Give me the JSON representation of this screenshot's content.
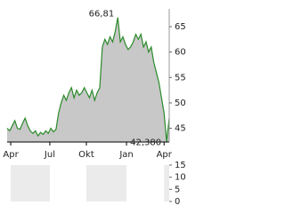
{
  "chart_data": [
    {
      "type": "area",
      "x": [
        0,
        1,
        2,
        3,
        4,
        5,
        6,
        7,
        8,
        9,
        10,
        11,
        12,
        13,
        14,
        15,
        16,
        17,
        18,
        19,
        20,
        21,
        22,
        23,
        24,
        25,
        26,
        27,
        28,
        29,
        30,
        31,
        32,
        33,
        34,
        35,
        36,
        37,
        38,
        39,
        40,
        41,
        42,
        43,
        44,
        45,
        46,
        47,
        48,
        49,
        50,
        51,
        52,
        53,
        54,
        55,
        56,
        57,
        58,
        59,
        60,
        61,
        62,
        63
      ],
      "series": [
        {
          "color": "#2a8a2a",
          "fill": "#c8c8c8",
          "values": [
            45,
            44.5,
            45.5,
            46.5,
            45,
            44.8,
            46,
            47,
            45.5,
            44.5,
            44,
            44.5,
            43.5,
            44.2,
            43.8,
            44.5,
            44,
            45,
            44.3,
            44.8,
            48,
            50,
            51.5,
            50.5,
            52,
            53,
            51,
            52.5,
            51.5,
            52,
            53,
            52,
            51,
            52.5,
            50.5,
            52,
            53,
            61,
            62.5,
            61.5,
            63,
            62,
            64,
            66.81,
            62,
            63,
            61.5,
            60.5,
            61,
            62,
            63.5,
            62.5,
            63.5,
            61,
            62,
            60,
            61,
            58,
            56,
            54,
            51,
            48,
            42.38,
            47
          ]
        }
      ],
      "xlim": [
        0,
        63
      ],
      "xticks": [
        {
          "value": 1.4,
          "label": "Apr"
        },
        {
          "value": 16.6,
          "label": "Jul"
        },
        {
          "value": 30.8,
          "label": "Okt"
        },
        {
          "value": 46.4,
          "label": "Jan"
        },
        {
          "value": 61,
          "label": "Apr"
        }
      ],
      "ylim": [
        42.3,
        68.5
      ],
      "yticks": [
        45,
        50,
        55,
        60,
        65
      ],
      "annotations": [
        {
          "x": 43,
          "y": 66.81,
          "label": "66,81"
        },
        {
          "x": 62,
          "y": 42.38,
          "label": "42,380"
        }
      ]
    },
    {
      "type": "bar",
      "ylim": [
        0,
        15
      ],
      "yticks": [
        15,
        10,
        5,
        0
      ]
    }
  ]
}
